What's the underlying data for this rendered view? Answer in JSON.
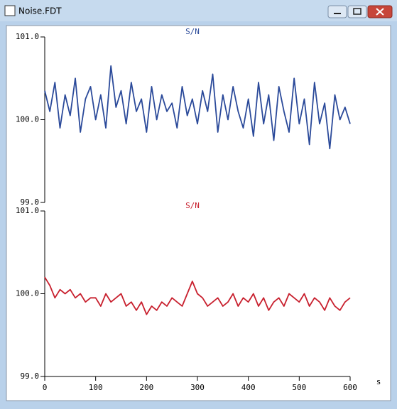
{
  "window": {
    "title": "Noise.FDT"
  },
  "chart_data": [
    {
      "type": "line",
      "title": "S/N",
      "xlim": [
        0,
        600
      ],
      "ylim": [
        99,
        101
      ],
      "yticks": [
        {
          "value": 99,
          "label": "99.0"
        },
        {
          "value": 100,
          "label": "100.0"
        },
        {
          "value": 101,
          "label": "101.0"
        }
      ],
      "x": [
        0,
        10,
        20,
        30,
        40,
        50,
        60,
        70,
        80,
        90,
        100,
        110,
        120,
        130,
        140,
        150,
        160,
        170,
        180,
        190,
        200,
        210,
        220,
        230,
        240,
        250,
        260,
        270,
        280,
        290,
        300,
        310,
        320,
        330,
        340,
        350,
        360,
        370,
        380,
        390,
        400,
        410,
        420,
        430,
        440,
        450,
        460,
        470,
        480,
        490,
        500,
        510,
        520,
        530,
        540,
        550,
        560,
        570,
        580,
        590,
        600
      ],
      "series": [
        {
          "color": "#2b4a9a",
          "values": [
            100.35,
            100.1,
            100.45,
            99.9,
            100.3,
            100.05,
            100.5,
            99.85,
            100.25,
            100.4,
            100.0,
            100.3,
            99.9,
            100.65,
            100.15,
            100.35,
            99.95,
            100.45,
            100.1,
            100.25,
            99.85,
            100.4,
            100.0,
            100.3,
            100.1,
            100.2,
            99.9,
            100.4,
            100.05,
            100.25,
            99.95,
            100.35,
            100.1,
            100.55,
            99.85,
            100.3,
            100.0,
            100.4,
            100.1,
            99.9,
            100.25,
            99.8,
            100.45,
            99.95,
            100.3,
            99.75,
            100.4,
            100.1,
            99.85,
            100.5,
            99.95,
            100.25,
            99.7,
            100.45,
            99.95,
            100.2,
            99.65,
            100.3,
            100.0,
            100.15,
            99.95
          ]
        }
      ]
    },
    {
      "type": "line",
      "title": "S/N",
      "xlabel": "s",
      "xlim": [
        0,
        600
      ],
      "ylim": [
        99,
        101
      ],
      "xticks": [
        0,
        100,
        200,
        300,
        400,
        500,
        600
      ],
      "yticks": [
        {
          "value": 99,
          "label": "99.0"
        },
        {
          "value": 100,
          "label": "100.0"
        },
        {
          "value": 101,
          "label": "101.0"
        }
      ],
      "x": [
        0,
        10,
        20,
        30,
        40,
        50,
        60,
        70,
        80,
        90,
        100,
        110,
        120,
        130,
        140,
        150,
        160,
        170,
        180,
        190,
        200,
        210,
        220,
        230,
        240,
        250,
        260,
        270,
        280,
        290,
        300,
        310,
        320,
        330,
        340,
        350,
        360,
        370,
        380,
        390,
        400,
        410,
        420,
        430,
        440,
        450,
        460,
        470,
        480,
        490,
        500,
        510,
        520,
        530,
        540,
        550,
        560,
        570,
        580,
        590,
        600
      ],
      "series": [
        {
          "color": "#c8202e",
          "values": [
            100.2,
            100.1,
            99.95,
            100.05,
            100.0,
            100.05,
            99.95,
            100.0,
            99.9,
            99.95,
            99.95,
            99.85,
            100.0,
            99.9,
            99.95,
            100.0,
            99.85,
            99.9,
            99.8,
            99.9,
            99.75,
            99.85,
            99.8,
            99.9,
            99.85,
            99.95,
            99.9,
            99.85,
            100.0,
            100.15,
            100.0,
            99.95,
            99.85,
            99.9,
            99.95,
            99.85,
            99.9,
            100.0,
            99.85,
            99.95,
            99.9,
            100.0,
            99.85,
            99.95,
            99.8,
            99.9,
            99.95,
            99.85,
            100.0,
            99.95,
            99.9,
            100.0,
            99.85,
            99.95,
            99.9,
            99.8,
            99.95,
            99.85,
            99.8,
            99.9,
            99.95
          ]
        }
      ]
    }
  ]
}
